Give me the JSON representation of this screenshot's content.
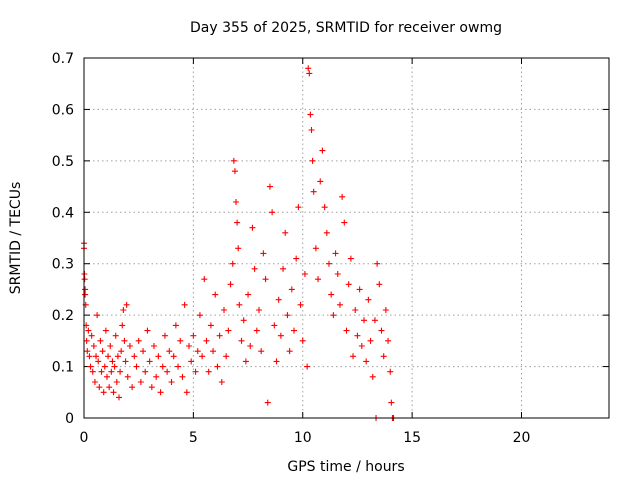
{
  "chart_data": {
    "type": "scatter",
    "title": "Day 355 of 2025, SRMTID for receiver owmg",
    "xlabel": "GPS time / hours",
    "ylabel": "SRMTID / TECUs",
    "xlim": [
      0,
      24
    ],
    "ylim": [
      0,
      0.7
    ],
    "xticks": [
      0,
      5,
      10,
      15,
      20
    ],
    "yticks": [
      0,
      0.1,
      0.2,
      0.3,
      0.4,
      0.5,
      0.6,
      0.7
    ],
    "xtick_labels": [
      "0",
      "5",
      "10",
      "15",
      "20"
    ],
    "ytick_labels": [
      "0",
      "0.1",
      "0.2",
      "0.3",
      "0.4",
      "0.5",
      "0.6",
      "0.7"
    ],
    "grid": true,
    "marker": "+",
    "color": "#ff0000",
    "series": [
      {
        "name": "SRMTID",
        "points": [
          [
            0.0,
            0.34
          ],
          [
            0.0,
            0.33
          ],
          [
            0.02,
            0.28
          ],
          [
            0.03,
            0.27
          ],
          [
            0.05,
            0.25
          ],
          [
            0.05,
            0.24
          ],
          [
            0.08,
            0.22
          ],
          [
            0.1,
            0.18
          ],
          [
            0.12,
            0.15
          ],
          [
            0.15,
            0.13
          ],
          [
            0.2,
            0.17
          ],
          [
            0.25,
            0.12
          ],
          [
            0.3,
            0.1
          ],
          [
            0.35,
            0.16
          ],
          [
            0.4,
            0.09
          ],
          [
            0.45,
            0.14
          ],
          [
            0.5,
            0.07
          ],
          [
            0.55,
            0.12
          ],
          [
            0.6,
            0.2
          ],
          [
            0.65,
            0.11
          ],
          [
            0.7,
            0.06
          ],
          [
            0.75,
            0.15
          ],
          [
            0.8,
            0.09
          ],
          [
            0.85,
            0.13
          ],
          [
            0.9,
            0.05
          ],
          [
            0.95,
            0.1
          ],
          [
            1.0,
            0.17
          ],
          [
            1.05,
            0.08
          ],
          [
            1.1,
            0.12
          ],
          [
            1.15,
            0.06
          ],
          [
            1.2,
            0.14
          ],
          [
            1.25,
            0.09
          ],
          [
            1.3,
            0.11
          ],
          [
            1.35,
            0.05
          ],
          [
            1.4,
            0.1
          ],
          [
            1.45,
            0.16
          ],
          [
            1.5,
            0.07
          ],
          [
            1.55,
            0.12
          ],
          [
            1.6,
            0.04
          ],
          [
            1.65,
            0.09
          ],
          [
            1.7,
            0.13
          ],
          [
            1.75,
            0.18
          ],
          [
            1.8,
            0.21
          ],
          [
            1.85,
            0.15
          ],
          [
            1.9,
            0.11
          ],
          [
            1.95,
            0.22
          ],
          [
            2.0,
            0.08
          ],
          [
            2.1,
            0.14
          ],
          [
            2.2,
            0.06
          ],
          [
            2.3,
            0.12
          ],
          [
            2.4,
            0.1
          ],
          [
            2.5,
            0.15
          ],
          [
            2.6,
            0.07
          ],
          [
            2.7,
            0.13
          ],
          [
            2.8,
            0.09
          ],
          [
            2.9,
            0.17
          ],
          [
            3.0,
            0.11
          ],
          [
            3.1,
            0.06
          ],
          [
            3.2,
            0.14
          ],
          [
            3.3,
            0.08
          ],
          [
            3.4,
            0.12
          ],
          [
            3.5,
            0.05
          ],
          [
            3.6,
            0.1
          ],
          [
            3.7,
            0.16
          ],
          [
            3.8,
            0.09
          ],
          [
            3.9,
            0.13
          ],
          [
            4.0,
            0.07
          ],
          [
            4.1,
            0.12
          ],
          [
            4.2,
            0.18
          ],
          [
            4.3,
            0.1
          ],
          [
            4.4,
            0.15
          ],
          [
            4.5,
            0.08
          ],
          [
            4.6,
            0.22
          ],
          [
            4.7,
            0.05
          ],
          [
            4.8,
            0.14
          ],
          [
            4.9,
            0.11
          ],
          [
            5.0,
            0.16
          ],
          [
            5.1,
            0.09
          ],
          [
            5.2,
            0.13
          ],
          [
            5.3,
            0.2
          ],
          [
            5.4,
            0.12
          ],
          [
            5.5,
            0.27
          ],
          [
            5.6,
            0.15
          ],
          [
            5.7,
            0.09
          ],
          [
            5.8,
            0.18
          ],
          [
            5.9,
            0.13
          ],
          [
            6.0,
            0.24
          ],
          [
            6.1,
            0.1
          ],
          [
            6.2,
            0.16
          ],
          [
            6.3,
            0.07
          ],
          [
            6.4,
            0.21
          ],
          [
            6.5,
            0.12
          ],
          [
            6.6,
            0.17
          ],
          [
            6.7,
            0.26
          ],
          [
            6.8,
            0.3
          ],
          [
            6.85,
            0.5
          ],
          [
            6.9,
            0.48
          ],
          [
            6.95,
            0.42
          ],
          [
            7.0,
            0.38
          ],
          [
            7.05,
            0.33
          ],
          [
            7.1,
            0.22
          ],
          [
            7.2,
            0.15
          ],
          [
            7.3,
            0.19
          ],
          [
            7.4,
            0.11
          ],
          [
            7.5,
            0.24
          ],
          [
            7.6,
            0.14
          ],
          [
            7.7,
            0.37
          ],
          [
            7.8,
            0.29
          ],
          [
            7.9,
            0.17
          ],
          [
            8.0,
            0.21
          ],
          [
            8.1,
            0.13
          ],
          [
            8.2,
            0.32
          ],
          [
            8.3,
            0.27
          ],
          [
            8.4,
            0.03
          ],
          [
            8.5,
            0.45
          ],
          [
            8.6,
            0.4
          ],
          [
            8.7,
            0.18
          ],
          [
            8.8,
            0.11
          ],
          [
            8.9,
            0.23
          ],
          [
            9.0,
            0.16
          ],
          [
            9.1,
            0.29
          ],
          [
            9.2,
            0.36
          ],
          [
            9.3,
            0.2
          ],
          [
            9.4,
            0.13
          ],
          [
            9.5,
            0.25
          ],
          [
            9.6,
            0.17
          ],
          [
            9.7,
            0.31
          ],
          [
            9.8,
            0.41
          ],
          [
            9.9,
            0.22
          ],
          [
            10.0,
            0.15
          ],
          [
            10.1,
            0.28
          ],
          [
            10.2,
            0.1
          ],
          [
            10.25,
            0.68
          ],
          [
            10.3,
            0.67
          ],
          [
            10.35,
            0.59
          ],
          [
            10.4,
            0.56
          ],
          [
            10.45,
            0.5
          ],
          [
            10.5,
            0.44
          ],
          [
            10.6,
            0.33
          ],
          [
            10.7,
            0.27
          ],
          [
            10.8,
            0.46
          ],
          [
            10.9,
            0.52
          ],
          [
            11.0,
            0.41
          ],
          [
            11.1,
            0.36
          ],
          [
            11.2,
            0.3
          ],
          [
            11.3,
            0.24
          ],
          [
            11.4,
            0.2
          ],
          [
            11.5,
            0.32
          ],
          [
            11.6,
            0.28
          ],
          [
            11.7,
            0.22
          ],
          [
            11.8,
            0.43
          ],
          [
            11.9,
            0.38
          ],
          [
            12.0,
            0.17
          ],
          [
            12.1,
            0.26
          ],
          [
            12.2,
            0.31
          ],
          [
            12.3,
            0.12
          ],
          [
            12.4,
            0.21
          ],
          [
            12.5,
            0.16
          ],
          [
            12.6,
            0.25
          ],
          [
            12.7,
            0.14
          ],
          [
            12.8,
            0.19
          ],
          [
            12.9,
            0.11
          ],
          [
            13.0,
            0.23
          ],
          [
            13.1,
            0.15
          ],
          [
            13.2,
            0.08
          ],
          [
            13.3,
            0.19
          ],
          [
            13.35,
            0.0
          ],
          [
            13.4,
            0.3
          ],
          [
            13.5,
            0.26
          ],
          [
            13.6,
            0.17
          ],
          [
            13.7,
            0.12
          ],
          [
            13.8,
            0.21
          ],
          [
            13.9,
            0.15
          ],
          [
            14.0,
            0.09
          ],
          [
            14.05,
            0.03
          ],
          [
            14.1,
            0.0
          ],
          [
            14.15,
            0.0
          ]
        ]
      }
    ]
  }
}
